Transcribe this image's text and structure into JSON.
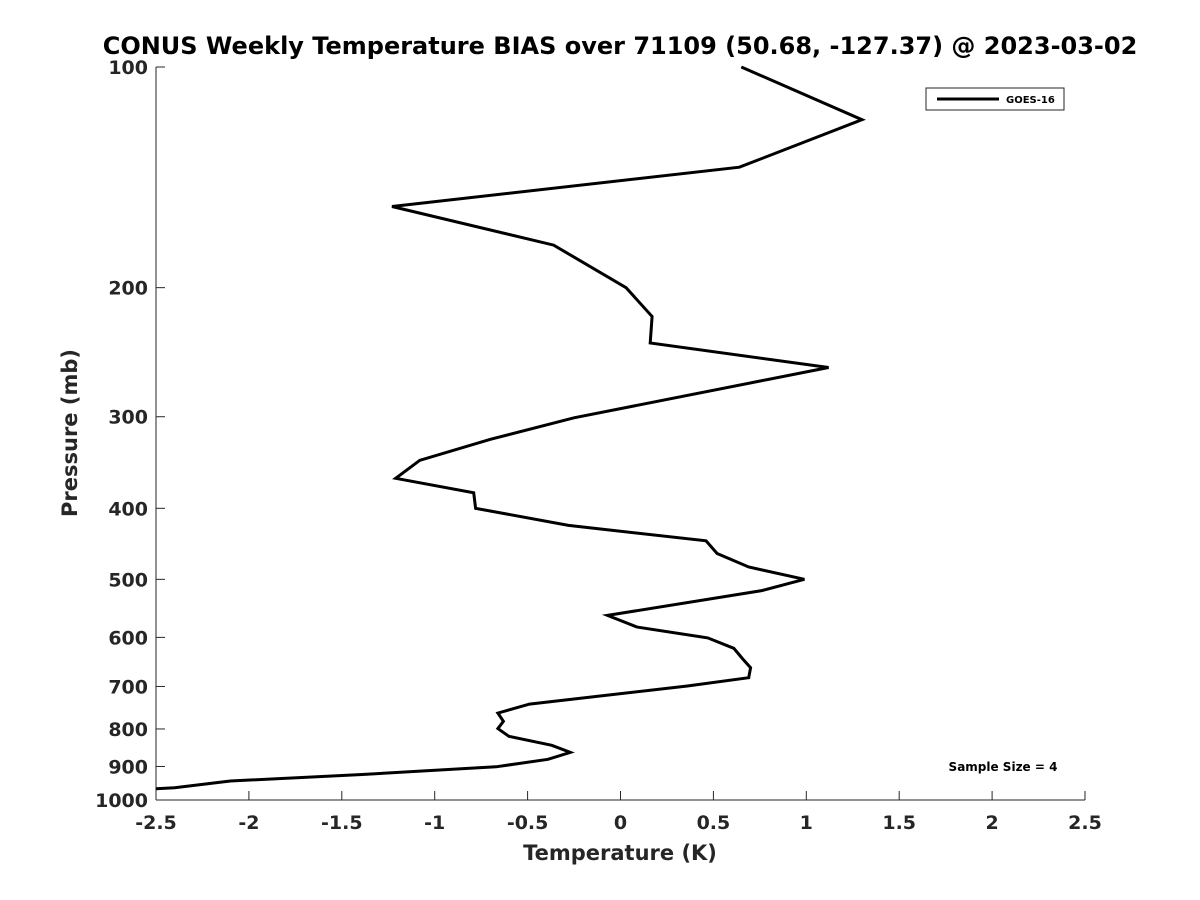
{
  "chart_data": {
    "type": "line",
    "title": "CONUS Weekly Temperature BIAS over 71109 (50.68, -127.37) @ 2023-03-02",
    "xlabel": "Temperature (K)",
    "ylabel": "Pressure (mb)",
    "xlim": [
      -2.5,
      2.5
    ],
    "ylim": [
      1000,
      100
    ],
    "y_scale": "log",
    "y_reversed": true,
    "xticks": [
      -2.5,
      -2,
      -1.5,
      -1,
      -0.5,
      0,
      0.5,
      1,
      1.5,
      2,
      2.5
    ],
    "xtick_labels": [
      "-2.5",
      "-2",
      "-1.5",
      "-1",
      "-0.5",
      "0",
      "0.5",
      "1",
      "1.5",
      "2",
      "2.5"
    ],
    "yticks": [
      100,
      200,
      300,
      400,
      500,
      600,
      700,
      800,
      900,
      1000
    ],
    "ytick_labels": [
      "100",
      "200",
      "300",
      "400",
      "500",
      "600",
      "700",
      "800",
      "900",
      "1000"
    ],
    "grid": false,
    "legend_position": "top-right",
    "annotation": "Sample Size = 4",
    "color": "#000000",
    "series": [
      {
        "name": "GOES-16",
        "points": [
          {
            "x": 0.65,
            "p": 100
          },
          {
            "x": 1.3,
            "p": 118
          },
          {
            "x": 0.64,
            "p": 137
          },
          {
            "x": -1.23,
            "p": 155
          },
          {
            "x": -0.36,
            "p": 175
          },
          {
            "x": 0.03,
            "p": 200
          },
          {
            "x": 0.17,
            "p": 219
          },
          {
            "x": 0.16,
            "p": 238
          },
          {
            "x": 1.12,
            "p": 257
          },
          {
            "x": -0.25,
            "p": 301
          },
          {
            "x": -0.7,
            "p": 322
          },
          {
            "x": -1.08,
            "p": 344
          },
          {
            "x": -1.21,
            "p": 364
          },
          {
            "x": -0.79,
            "p": 381
          },
          {
            "x": -0.78,
            "p": 400
          },
          {
            "x": -0.28,
            "p": 422
          },
          {
            "x": 0.46,
            "p": 443
          },
          {
            "x": 0.52,
            "p": 461
          },
          {
            "x": 0.69,
            "p": 481
          },
          {
            "x": 0.99,
            "p": 500
          },
          {
            "x": 0.76,
            "p": 518
          },
          {
            "x": -0.07,
            "p": 560
          },
          {
            "x": 0.09,
            "p": 581
          },
          {
            "x": 0.47,
            "p": 601
          },
          {
            "x": 0.61,
            "p": 621
          },
          {
            "x": 0.66,
            "p": 643
          },
          {
            "x": 0.7,
            "p": 660
          },
          {
            "x": 0.69,
            "p": 681
          },
          {
            "x": 0.36,
            "p": 699
          },
          {
            "x": -0.49,
            "p": 740
          },
          {
            "x": -0.66,
            "p": 761
          },
          {
            "x": -0.63,
            "p": 781
          },
          {
            "x": -0.66,
            "p": 799
          },
          {
            "x": -0.6,
            "p": 819
          },
          {
            "x": -0.37,
            "p": 842
          },
          {
            "x": -0.27,
            "p": 861
          },
          {
            "x": -0.39,
            "p": 880
          },
          {
            "x": -0.67,
            "p": 901
          },
          {
            "x": -1.39,
            "p": 923
          },
          {
            "x": -2.1,
            "p": 942
          },
          {
            "x": -2.4,
            "p": 962
          },
          {
            "x": -2.5,
            "p": 965
          }
        ]
      }
    ]
  }
}
